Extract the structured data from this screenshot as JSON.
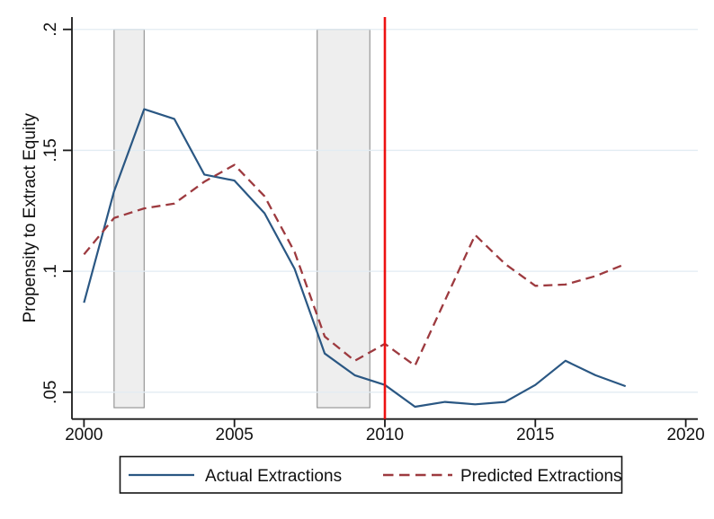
{
  "figure": {
    "background": "#ffffff"
  },
  "chart_data": {
    "type": "line",
    "title": "",
    "xlabel": "",
    "ylabel": "Propensity to Extract Equity",
    "x": [
      2000,
      2001,
      2002,
      2003,
      2004,
      2005,
      2006,
      2007,
      2008,
      2009,
      2010,
      2011,
      2012,
      2013,
      2014,
      2015,
      2016,
      2017,
      2018
    ],
    "series": [
      {
        "name": "Actual Extractions",
        "style": "solid",
        "color": "#2a5783",
        "values": [
          0.087,
          0.133,
          0.167,
          0.163,
          0.14,
          0.1375,
          0.124,
          0.101,
          0.066,
          0.057,
          0.053,
          0.044,
          0.046,
          0.045,
          0.046,
          0.053,
          0.063,
          0.057,
          0.0525
        ]
      },
      {
        "name": "Predicted Extractions",
        "style": "dashed",
        "color": "#9d3a3f",
        "values": [
          0.107,
          0.122,
          0.126,
          0.128,
          0.137,
          0.144,
          0.131,
          0.108,
          0.073,
          0.063,
          0.07,
          0.061,
          0.088,
          0.115,
          0.103,
          0.094,
          0.0945,
          0.098,
          0.103
        ]
      }
    ],
    "x_ticks": [
      {
        "value": 2000,
        "label": "2000"
      },
      {
        "value": 2005,
        "label": "2005"
      },
      {
        "value": 2010,
        "label": "2010"
      },
      {
        "value": 2015,
        "label": "2015"
      },
      {
        "value": 2020,
        "label": "2020"
      }
    ],
    "y_ticks": [
      {
        "value": 0.05,
        "label": ".05"
      },
      {
        "value": 0.1,
        "label": ".1"
      },
      {
        "value": 0.15,
        "label": ".15"
      },
      {
        "value": 0.2,
        "label": ".2"
      }
    ],
    "xlim": [
      1999.6,
      2020.4
    ],
    "ylim": [
      0.0389,
      0.2051
    ],
    "grid": "horizontal",
    "legend_position": "bottom",
    "shaded_regions": [
      {
        "x0": 2001.0,
        "x1": 2002.0,
        "y0": 0.0436,
        "y1": 0.2,
        "meaning": "recession-band"
      },
      {
        "x0": 2007.75,
        "x1": 2009.5,
        "y0": 0.0436,
        "y1": 0.2,
        "meaning": "recession-band"
      }
    ],
    "vline": {
      "x": 2010,
      "color": "#ed1111"
    }
  },
  "colors": {
    "axis": "#1a1a1a",
    "gridline": "#e2ecf3",
    "band_fill": "#eeeeee",
    "band_stroke": "#8f8f8f",
    "legend_border": "#141414",
    "text": "#111111"
  }
}
